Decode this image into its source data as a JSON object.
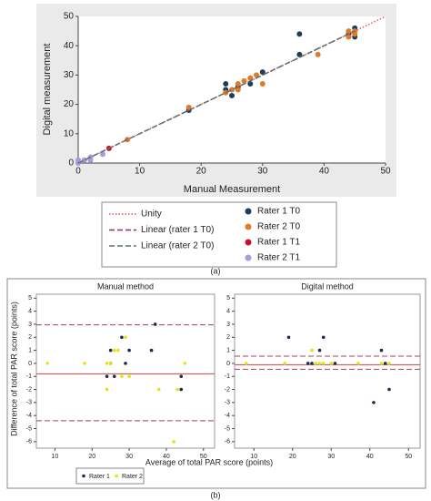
{
  "figure": {
    "labels": [
      "(a)",
      "(b)"
    ]
  },
  "shared_b": {
    "x_label": "Average of total PAR score (points)",
    "y_label": "Difference of total PAR score (points)"
  },
  "chart_data": [
    {
      "type": "scatter",
      "x_label": "Manual Measurement",
      "y_label": "Digital measurement",
      "xlim": [
        0,
        50
      ],
      "ylim": [
        0,
        50
      ],
      "xticks": [
        0,
        10,
        20,
        30,
        40,
        50
      ],
      "yticks": [
        0,
        10,
        20,
        30,
        40,
        50
      ],
      "grid": false,
      "lines": [
        {
          "name": "Unity",
          "color": "#e05050",
          "style": "dotted",
          "x": [
            0,
            50
          ],
          "values": [
            0,
            50
          ]
        },
        {
          "name": "Linear (rater 1 T0)",
          "color": "#8b2a6b",
          "style": "dashed",
          "x": [
            0,
            45
          ],
          "values": [
            0,
            45
          ]
        },
        {
          "name": "Linear (rater 2 T0)",
          "color": "#5a7a6a",
          "style": "dashed",
          "x": [
            0,
            45
          ],
          "values": [
            0,
            45
          ]
        }
      ],
      "series": [
        {
          "name": "Rater 1 T0",
          "color": "#1c3d5e",
          "x": [
            18,
            24,
            24,
            25,
            26,
            28,
            30,
            36,
            36,
            45,
            45,
            44
          ],
          "values": [
            18,
            27,
            25,
            23,
            26,
            27,
            31,
            44,
            37,
            46,
            43,
            44
          ]
        },
        {
          "name": "Rater 2 T0",
          "color": "#e07b2a",
          "x": [
            8,
            18,
            24,
            25,
            26,
            26,
            27,
            28,
            29,
            30,
            39,
            44,
            44,
            45,
            45
          ],
          "values": [
            8,
            19,
            24,
            25,
            27,
            25,
            28,
            29,
            30,
            27,
            37,
            45,
            43,
            44,
            45
          ]
        },
        {
          "name": "Rater 1 T1",
          "color": "#c8102e",
          "x": [
            5
          ],
          "values": [
            5
          ]
        },
        {
          "name": "Rater 2 T1",
          "color": "#a79be0",
          "x": [
            0,
            0,
            1,
            2,
            2,
            4
          ],
          "values": [
            0,
            1,
            1,
            1,
            2,
            3
          ]
        }
      ]
    },
    {
      "type": "bland-altman",
      "title": "Manual method",
      "xlim": [
        5,
        53
      ],
      "ylim": [
        -6.5,
        5.3
      ],
      "xticks": [
        10,
        20,
        30,
        40,
        50
      ],
      "yticks": [
        5,
        4,
        3,
        2,
        1,
        0,
        -1,
        -2,
        -3,
        -4,
        -5,
        -6
      ],
      "hlines": [
        {
          "value": 2.95,
          "color": "#a0406a",
          "style": "dashed"
        },
        {
          "value": -0.8,
          "color": "#d04040",
          "style": "solid"
        },
        {
          "value": -4.4,
          "color": "#a0406a",
          "style": "dashed"
        }
      ],
      "series": [
        {
          "name": "Rater 1",
          "color": "#1c2a50",
          "x": [
            24,
            25,
            25,
            26,
            28,
            29,
            30,
            36,
            37,
            44,
            44
          ],
          "values": [
            -1,
            1,
            0,
            -1,
            2,
            0,
            1,
            1,
            3,
            -2,
            -1
          ]
        },
        {
          "name": "Rater 2",
          "color": "#e8e010",
          "x": [
            8,
            18,
            24,
            25,
            26,
            27,
            28,
            29,
            30,
            38,
            42,
            43,
            45,
            24
          ],
          "values": [
            0,
            0,
            -2,
            0,
            1,
            1,
            -1,
            2,
            -1,
            -2,
            -6,
            -2,
            0,
            0
          ]
        }
      ]
    },
    {
      "type": "bland-altman",
      "title": "Digital method",
      "xlim": [
        5,
        53
      ],
      "ylim": [
        -6.5,
        5.3
      ],
      "xticks": [
        10,
        20,
        30,
        40,
        50
      ],
      "yticks": [
        5,
        4,
        3,
        2,
        1,
        0,
        -1,
        -2,
        -3,
        -4,
        -5,
        -6
      ],
      "hlines": [
        {
          "value": 0.55,
          "color": "#a0406a",
          "style": "dashed"
        },
        {
          "value": -0.1,
          "color": "#d04040",
          "style": "solid"
        },
        {
          "value": -0.45,
          "color": "#a0406a",
          "style": "dashed"
        }
      ],
      "series": [
        {
          "color": "#1c2a50",
          "x": [
            19,
            24,
            25,
            27,
            28,
            31,
            41,
            43,
            45,
            44
          ],
          "values": [
            2,
            0,
            0,
            1,
            2,
            0,
            -3,
            1,
            -2,
            0
          ]
        },
        {
          "color": "#e8e010",
          "x": [
            8,
            18,
            25,
            26,
            27,
            28,
            30,
            37,
            43,
            45
          ],
          "values": [
            0,
            0,
            1,
            0,
            0,
            0,
            0,
            0,
            0,
            0
          ]
        }
      ]
    }
  ]
}
